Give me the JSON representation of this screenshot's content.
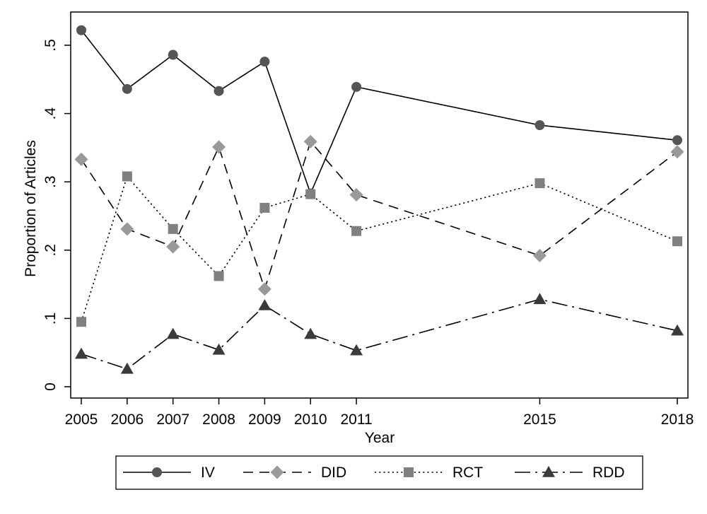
{
  "chart_data": {
    "type": "line",
    "title": "",
    "xlabel": "Year",
    "ylabel": "Proportion of Articles",
    "x": [
      2005,
      2006,
      2007,
      2008,
      2009,
      2010,
      2011,
      2015,
      2018
    ],
    "x_tick_labels": [
      "2005",
      "2006",
      "2007",
      "2008",
      "2009",
      "2010",
      "2011",
      "2015",
      "2018"
    ],
    "y_ticks": [
      0,
      0.1,
      0.2,
      0.3,
      0.4,
      0.5
    ],
    "y_tick_labels": [
      "0",
      ".1",
      ".2",
      ".3",
      ".4",
      ".5"
    ],
    "xlim": [
      2005,
      2018
    ],
    "ylim": [
      0,
      0.5
    ],
    "grid": false,
    "legend_position": "bottom",
    "series": [
      {
        "name": "IV",
        "values": [
          0.522,
          0.436,
          0.486,
          0.433,
          0.476,
          0.283,
          0.439,
          0.383,
          0.361
        ],
        "color": "#555555",
        "line": "solid",
        "marker": "circle"
      },
      {
        "name": "DID",
        "values": [
          0.333,
          0.231,
          0.205,
          0.351,
          0.143,
          0.359,
          0.281,
          0.192,
          0.344
        ],
        "color": "#999999",
        "line": "dashed",
        "marker": "diamond"
      },
      {
        "name": "RCT",
        "values": [
          0.095,
          0.308,
          0.231,
          0.162,
          0.262,
          0.282,
          0.228,
          0.298,
          0.213
        ],
        "color": "#808080",
        "line": "dotted",
        "marker": "square"
      },
      {
        "name": "RDD",
        "values": [
          0.048,
          0.026,
          0.077,
          0.054,
          0.119,
          0.077,
          0.053,
          0.128,
          0.082
        ],
        "color": "#3a3a3a",
        "line": "dashdot",
        "marker": "triangle"
      }
    ]
  }
}
